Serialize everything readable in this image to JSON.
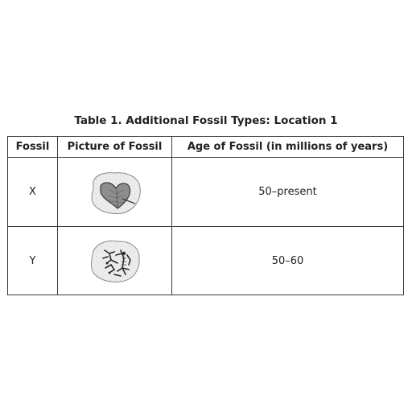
{
  "caption": "Table 1. Additional Fossil Types: Location 1",
  "table": {
    "headers": [
      "Fossil",
      "Picture of Fossil",
      "Age of Fossil (in millions of years)"
    ],
    "rows": [
      {
        "fossil": "X",
        "picture": "leaf-fossil-icon",
        "age": "50–present"
      },
      {
        "fossil": "Y",
        "picture": "skeleton-fossil-icon",
        "age": "50–60"
      }
    ]
  }
}
